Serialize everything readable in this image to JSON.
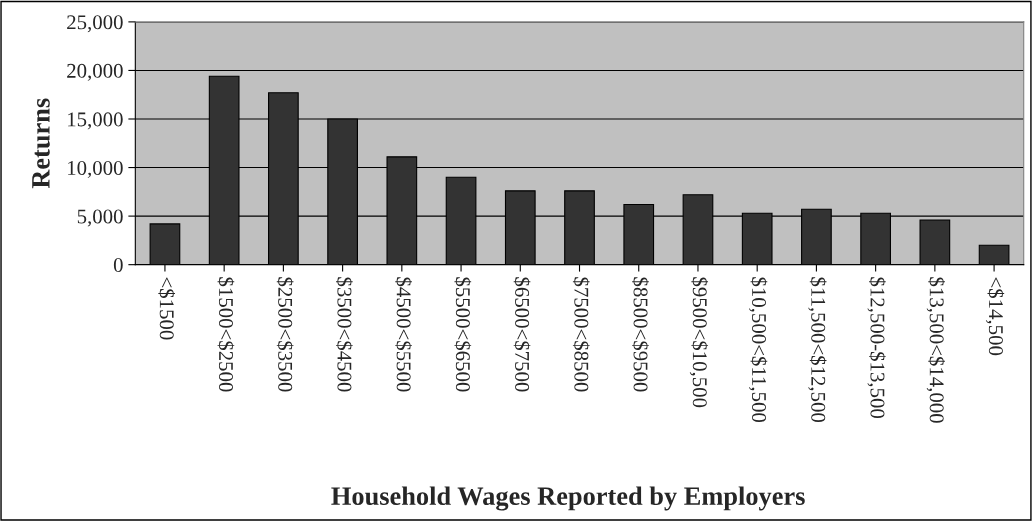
{
  "chart_data": {
    "type": "bar",
    "xlabel": "Household Wages Reported by Employers",
    "ylabel": "Returns",
    "categories": [
      "<$1500",
      "$1500<$2500",
      "$2500<$3500",
      "$3500<$4500",
      "$4500<$5500",
      "$5500<$6500",
      "$6500<$7500",
      "$7500<$8500",
      "$8500<$9500",
      "$9500<$10,500",
      "$10,500<$11,500",
      "$11,500<$12,500",
      "$12,500-$13,500",
      "$13,500<$14,000",
      "<$14,500"
    ],
    "values": [
      4200,
      19400,
      17700,
      15000,
      11100,
      9000,
      7600,
      7600,
      6200,
      7200,
      5300,
      5700,
      5300,
      4600,
      2000
    ],
    "color": "#333333",
    "ylim": [
      0,
      25000
    ],
    "yticks": [
      {
        "value": 0,
        "label": "0"
      },
      {
        "value": 5000,
        "label": "5,000"
      },
      {
        "value": 10000,
        "label": "10,000"
      },
      {
        "value": 15000,
        "label": "15,000"
      },
      {
        "value": 20000,
        "label": "20,000"
      },
      {
        "value": 25000,
        "label": "25,000"
      }
    ],
    "grid": "y"
  }
}
